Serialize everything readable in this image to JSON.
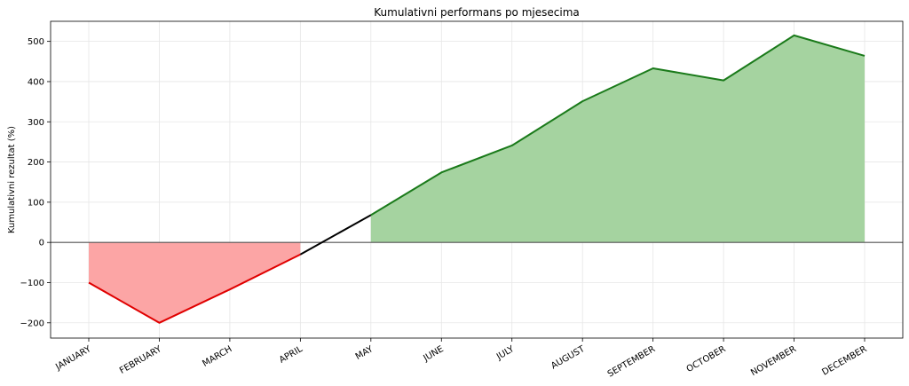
{
  "chart_data": {
    "type": "area",
    "title": "Kumulativni performans po mjesecima",
    "xlabel": "",
    "ylabel": "Kumulativni rezultat (%)",
    "categories": [
      "JANUARY",
      "FEBRUARY",
      "MARCH",
      "APRIL",
      "MAY",
      "JUNE",
      "JULY",
      "AUGUST",
      "SEPTEMBER",
      "OCTOBER",
      "NOVEMBER",
      "DECEMBER"
    ],
    "values": [
      -100,
      -200,
      -117,
      -30,
      68,
      174,
      241,
      351,
      433,
      403,
      515,
      464
    ],
    "ylim": [
      -238,
      550
    ],
    "yticks": [
      -200,
      -100,
      0,
      100,
      200,
      300,
      400,
      500
    ],
    "ytick_labels": [
      "−200",
      "−100",
      "0",
      "100",
      "200",
      "300",
      "400",
      "500"
    ],
    "grid": true,
    "colors": {
      "positive_line": "#1a7a1a",
      "positive_fill": "#a5d3a0",
      "negative_line": "#e00000",
      "negative_fill": "#fca5a5",
      "transition_line": "#000000",
      "zero_line": "#555555"
    }
  }
}
